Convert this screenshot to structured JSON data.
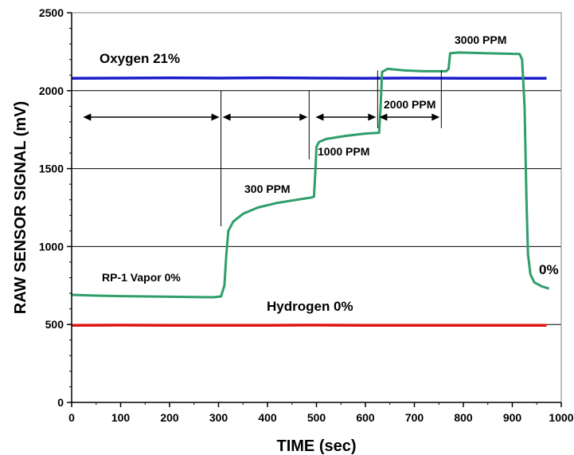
{
  "chart_data": {
    "type": "line",
    "xlabel": "TIME (sec)",
    "ylabel": "RAW SENSOR SIGNAL (mV)",
    "xlim": [
      0,
      1000
    ],
    "ylim": [
      0,
      2500
    ],
    "x_ticks": [
      0,
      100,
      200,
      300,
      400,
      500,
      600,
      700,
      800,
      900,
      1000
    ],
    "y_ticks": [
      0,
      500,
      1000,
      1500,
      2000,
      2500
    ],
    "grid": "horizontal",
    "legend": "none",
    "series": [
      {
        "color": "#1a1acc",
        "values": [
          [
            0,
            2080
          ],
          [
            100,
            2081
          ],
          [
            200,
            2082
          ],
          [
            300,
            2081
          ],
          [
            400,
            2083
          ],
          [
            500,
            2081
          ],
          [
            600,
            2080
          ],
          [
            700,
            2081
          ],
          [
            800,
            2080
          ],
          [
            900,
            2080
          ],
          [
            970,
            2080
          ]
        ]
      },
      {
        "color": "#e01010",
        "values": [
          [
            0,
            495
          ],
          [
            100,
            496
          ],
          [
            200,
            495
          ],
          [
            300,
            495
          ],
          [
            400,
            495
          ],
          [
            500,
            496
          ],
          [
            600,
            495
          ],
          [
            700,
            495
          ],
          [
            800,
            495
          ],
          [
            900,
            495
          ],
          [
            970,
            495
          ]
        ]
      },
      {
        "color": "#2e9e6a",
        "values": [
          [
            0,
            690
          ],
          [
            50,
            685
          ],
          [
            100,
            682
          ],
          [
            150,
            680
          ],
          [
            200,
            678
          ],
          [
            250,
            676
          ],
          [
            290,
            675
          ],
          [
            305,
            680
          ],
          [
            312,
            750
          ],
          [
            316,
            950
          ],
          [
            320,
            1100
          ],
          [
            330,
            1160
          ],
          [
            350,
            1210
          ],
          [
            380,
            1250
          ],
          [
            420,
            1280
          ],
          [
            460,
            1300
          ],
          [
            490,
            1315
          ],
          [
            495,
            1320
          ],
          [
            498,
            1500
          ],
          [
            500,
            1640
          ],
          [
            505,
            1670
          ],
          [
            520,
            1690
          ],
          [
            560,
            1710
          ],
          [
            600,
            1725
          ],
          [
            628,
            1730
          ],
          [
            631,
            1900
          ],
          [
            634,
            2120
          ],
          [
            645,
            2140
          ],
          [
            680,
            2130
          ],
          [
            720,
            2125
          ],
          [
            765,
            2125
          ],
          [
            770,
            2140
          ],
          [
            773,
            2240
          ],
          [
            790,
            2245
          ],
          [
            850,
            2240
          ],
          [
            915,
            2235
          ],
          [
            920,
            2200
          ],
          [
            925,
            1900
          ],
          [
            929,
            1300
          ],
          [
            932,
            950
          ],
          [
            937,
            820
          ],
          [
            945,
            770
          ],
          [
            960,
            745
          ],
          [
            975,
            730
          ]
        ]
      }
    ],
    "annotations": [
      {
        "text": "Oxygen 21%"
      },
      {
        "text": "Hydrogen 0%"
      },
      {
        "text": "RP-1 Vapor 0%"
      },
      {
        "text": "300 PPM"
      },
      {
        "text": "1000 PPM"
      },
      {
        "text": "2000 PPM"
      },
      {
        "text": "3000 PPM"
      },
      {
        "text": "0%"
      }
    ],
    "interval_markers": [
      {
        "from": 20,
        "to": 305
      },
      {
        "from": 305,
        "to": 485
      },
      {
        "from": 495,
        "to": 625
      },
      {
        "from": 625,
        "to": 755
      }
    ],
    "dividers": [
      {
        "x": 305,
        "y_from": 1130,
        "y_to": 2000
      },
      {
        "x": 485,
        "y_from": 1560,
        "y_to": 2000
      },
      {
        "x": 625,
        "y_from": 1760,
        "y_to": 2130
      },
      {
        "x": 755,
        "y_from": 1760,
        "y_to": 2130
      }
    ]
  }
}
